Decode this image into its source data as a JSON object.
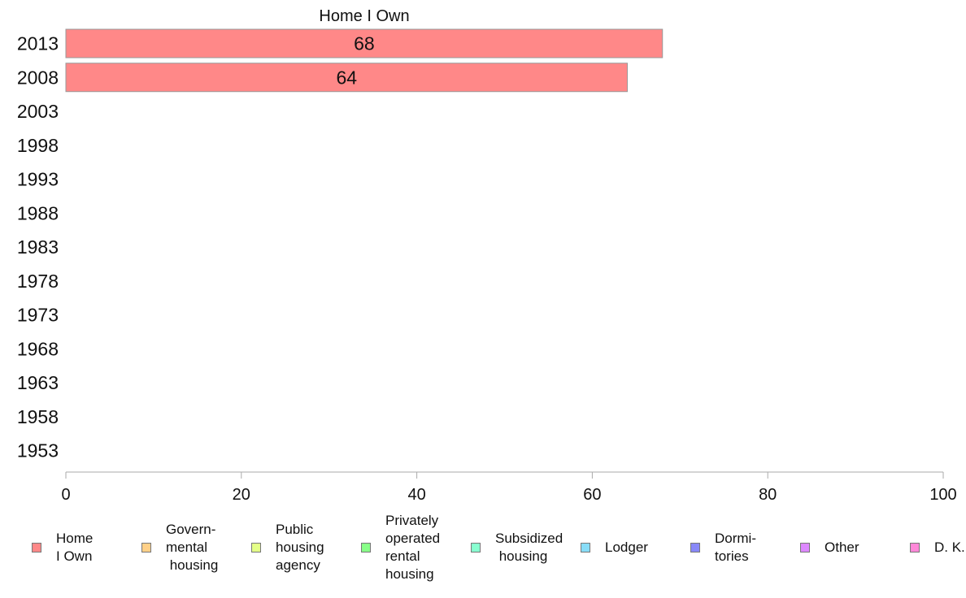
{
  "chart_data": {
    "type": "bar",
    "orientation": "horizontal",
    "title": "Home I Own",
    "categories": [
      "2013",
      "2008",
      "2003",
      "1998",
      "1993",
      "1988",
      "1983",
      "1978",
      "1973",
      "1968",
      "1963",
      "1958",
      "1953"
    ],
    "series": [
      {
        "name": "Home I Own",
        "color": "#FF8888",
        "values": [
          68,
          64,
          null,
          null,
          null,
          null,
          null,
          null,
          null,
          null,
          null,
          null,
          null
        ]
      }
    ],
    "data_labels": [
      "68",
      "64",
      "",
      "",
      "",
      "",
      "",
      "",
      "",
      "",
      "",
      "",
      ""
    ],
    "xlim": [
      0,
      100
    ],
    "xticks": [
      0,
      20,
      40,
      60,
      80,
      100
    ],
    "xtick_labels": [
      "0",
      "20",
      "40",
      "60",
      "80",
      "100"
    ],
    "grid": false,
    "legend_position": "bottom",
    "legend": [
      {
        "label": "Home\nI Own",
        "color": "#FF8888"
      },
      {
        "label": "Govern-\nmental\n housing",
        "color": "#FFD088"
      },
      {
        "label": "Public\nhousing\nagency",
        "color": "#E4FF88"
      },
      {
        "label": "Privately\noperated\nrental\nhousing",
        "color": "#88FF88"
      },
      {
        "label": "Subsidized\n housing",
        "color": "#88FFD0"
      },
      {
        "label": "Lodger",
        "color": "#88DDF8"
      },
      {
        "label": "Dormi-\ntories",
        "color": "#8888F8"
      },
      {
        "label": "Other",
        "color": "#DD88FF"
      },
      {
        "label": "D. K.",
        "color": "#FF88D8"
      }
    ]
  }
}
